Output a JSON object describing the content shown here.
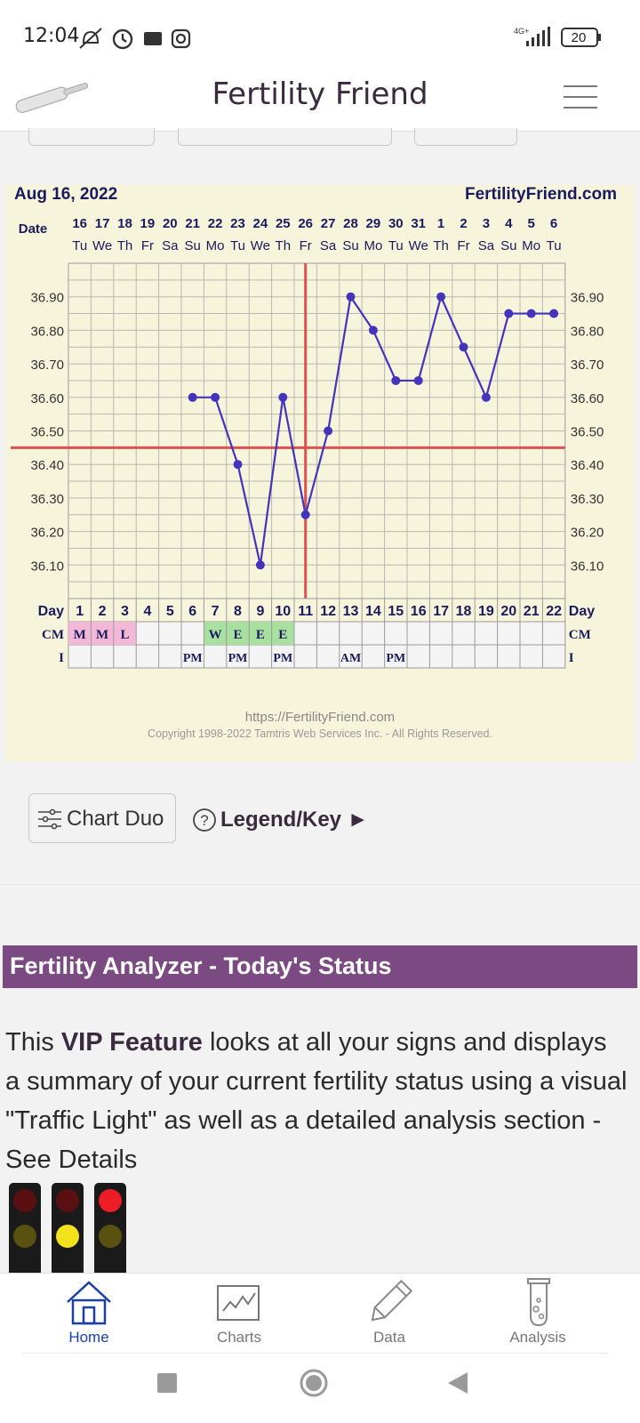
{
  "status_bar": {
    "time": "12:04",
    "network": "4G+",
    "battery": "20",
    "icons": [
      "mute-icon",
      "alarm-icon",
      "sim-card-icon",
      "instagram-icon",
      "signal-icon",
      "battery-icon"
    ]
  },
  "app_bar": {
    "title": "Fertility Friend",
    "logo": "thermometer-icon",
    "menu": "hamburger-menu-icon"
  },
  "chart": {
    "date_label": "Aug 16, 2022",
    "site": "FertilityFriend.com",
    "date_row_label": "Date",
    "day_row_label": "Day",
    "cm_row_label": "CM",
    "i_row_label": "I",
    "footer_url": "https://FertilityFriend.com",
    "footer_copyright": "Copyright 1998-2022 Tamtris Web Services Inc. - All Rights Reserved."
  },
  "chart_data": {
    "type": "line",
    "title": "Aug 16, 2022",
    "ylim": [
      36.0,
      37.0
    ],
    "y_ticks": [
      "36.90",
      "36.80",
      "36.70",
      "36.60",
      "36.50",
      "36.40",
      "36.30",
      "36.20",
      "36.10"
    ],
    "dates": [
      "16",
      "17",
      "18",
      "19",
      "20",
      "21",
      "22",
      "23",
      "24",
      "25",
      "26",
      "27",
      "28",
      "29",
      "30",
      "31",
      "1",
      "2",
      "3",
      "4",
      "5",
      "6"
    ],
    "weekdays": [
      "Tu",
      "We",
      "Th",
      "Fr",
      "Sa",
      "Su",
      "Mo",
      "Tu",
      "We",
      "Th",
      "Fr",
      "Sa",
      "Su",
      "Mo",
      "Tu",
      "We",
      "Th",
      "Fr",
      "Sa",
      "Su",
      "Mo",
      "Tu"
    ],
    "days": [
      "1",
      "2",
      "3",
      "4",
      "5",
      "6",
      "7",
      "8",
      "9",
      "10",
      "11",
      "12",
      "13",
      "14",
      "15",
      "16",
      "17",
      "18",
      "19",
      "20",
      "21",
      "22"
    ],
    "temperatures": [
      null,
      null,
      null,
      null,
      null,
      36.6,
      36.6,
      36.4,
      36.1,
      36.6,
      36.25,
      36.5,
      36.9,
      36.8,
      36.65,
      36.65,
      36.9,
      36.75,
      36.6,
      36.85,
      36.85,
      36.85
    ],
    "coverline": 36.45,
    "ovulation_day": 11,
    "cm": [
      "M",
      "M",
      "L",
      "",
      "",
      "",
      "W",
      "E",
      "E",
      "E",
      "",
      "",
      "",
      "",
      "",
      "",
      "",
      "",
      "",
      "",
      "",
      ""
    ],
    "intercourse": [
      "",
      "",
      "",
      "",
      "",
      "PM",
      "",
      "PM",
      "",
      "PM",
      "",
      "",
      "AM",
      "",
      "PM",
      "",
      "",
      "",
      "",
      "",
      "",
      ""
    ],
    "colors": {
      "line": "#4433bb",
      "coverline": "#d9534f",
      "cm_menses": "#f2b8d6",
      "cm_fertile": "#a8e0a0"
    }
  },
  "controls": {
    "chart_duo": "Chart Duo",
    "legend": "Legend/Key ►"
  },
  "analyzer": {
    "header": "Fertility Analyzer - Today's Status",
    "body_prefix": "This ",
    "body_bold": "VIP Feature",
    "body_rest": " looks at all your signs and displays a summary of your current fertility status using a visual \"Traffic Light\" as well as a detailed analysis section - See Details"
  },
  "bottom_nav": {
    "items": [
      {
        "label": "Home",
        "icon": "home-icon",
        "active": true
      },
      {
        "label": "Charts",
        "icon": "chart-icon",
        "active": false
      },
      {
        "label": "Data",
        "icon": "pencil-icon",
        "active": false
      },
      {
        "label": "Analysis",
        "icon": "test-tube-icon",
        "active": false
      }
    ],
    "active_color": "#1a3fa8"
  }
}
